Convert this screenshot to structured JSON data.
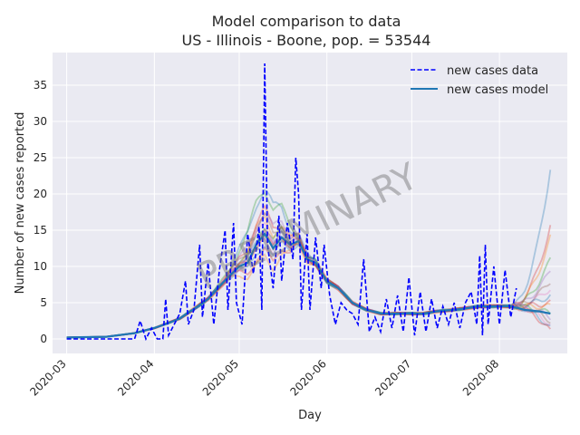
{
  "chart_data": {
    "type": "line",
    "title_line1": "Model comparison to data",
    "title_line2": "US - Illinois - Boone, pop. = 53544",
    "xlabel": "Day",
    "ylabel": "Number of new cases reported",
    "xlim": [
      "2020-02-25",
      "2020-08-25"
    ],
    "ylim": [
      -2,
      39.5
    ],
    "x_ticks": [
      "2020-03-01",
      "2020-04-01",
      "2020-05-01",
      "2020-06-01",
      "2020-07-01",
      "2020-08-01"
    ],
    "x_tick_labels": [
      "2020-03",
      "2020-04",
      "2020-05",
      "2020-06",
      "2020-07",
      "2020-08"
    ],
    "y_ticks": [
      0,
      5,
      10,
      15,
      20,
      25,
      30,
      35
    ],
    "y_tick_labels": [
      "0",
      "5",
      "10",
      "15",
      "20",
      "25",
      "30",
      "35"
    ],
    "grid": true,
    "legend_position": "top-right",
    "watermark": "PRELIMINARY",
    "colors": {
      "background": "#eaeaf2",
      "grid": "#ffffff",
      "data": "#0000ff",
      "model": "#1f77b4",
      "ensemble": [
        "#1f77b4",
        "#d62728",
        "#ff7f0e",
        "#2ca02c",
        "#9467bd",
        "#8c564b",
        "#e377c2"
      ]
    },
    "series": [
      {
        "name": "new cases data",
        "style": "dashed",
        "points": [
          [
            "2020-03-01",
            0
          ],
          [
            "2020-03-05",
            0
          ],
          [
            "2020-03-10",
            0
          ],
          [
            "2020-03-15",
            0
          ],
          [
            "2020-03-20",
            0
          ],
          [
            "2020-03-25",
            0
          ],
          [
            "2020-03-27",
            2.5
          ],
          [
            "2020-03-29",
            0
          ],
          [
            "2020-03-31",
            1.5
          ],
          [
            "2020-04-02",
            0
          ],
          [
            "2020-04-04",
            0
          ],
          [
            "2020-04-05",
            5.5
          ],
          [
            "2020-04-06",
            0.5
          ],
          [
            "2020-04-08",
            2
          ],
          [
            "2020-04-10",
            3.5
          ],
          [
            "2020-04-12",
            8
          ],
          [
            "2020-04-13",
            2
          ],
          [
            "2020-04-15",
            4
          ],
          [
            "2020-04-17",
            13
          ],
          [
            "2020-04-18",
            3
          ],
          [
            "2020-04-20",
            10.5
          ],
          [
            "2020-04-22",
            2
          ],
          [
            "2020-04-24",
            9.5
          ],
          [
            "2020-04-26",
            15
          ],
          [
            "2020-04-27",
            4
          ],
          [
            "2020-04-29",
            16
          ],
          [
            "2020-04-30",
            5
          ],
          [
            "2020-05-02",
            2
          ],
          [
            "2020-05-04",
            14.5
          ],
          [
            "2020-05-06",
            9
          ],
          [
            "2020-05-08",
            15.5
          ],
          [
            "2020-05-09",
            4
          ],
          [
            "2020-05-10",
            38
          ],
          [
            "2020-05-11",
            13
          ],
          [
            "2020-05-13",
            7
          ],
          [
            "2020-05-15",
            17
          ],
          [
            "2020-05-16",
            8
          ],
          [
            "2020-05-18",
            16
          ],
          [
            "2020-05-20",
            11
          ],
          [
            "2020-05-21",
            25
          ],
          [
            "2020-05-22",
            20
          ],
          [
            "2020-05-23",
            4
          ],
          [
            "2020-05-25",
            14.5
          ],
          [
            "2020-05-26",
            4
          ],
          [
            "2020-05-28",
            14
          ],
          [
            "2020-05-30",
            7
          ],
          [
            "2020-05-31",
            13
          ],
          [
            "2020-06-02",
            6
          ],
          [
            "2020-06-04",
            2
          ],
          [
            "2020-06-06",
            5
          ],
          [
            "2020-06-08",
            4
          ],
          [
            "2020-06-10",
            3.5
          ],
          [
            "2020-06-12",
            2
          ],
          [
            "2020-06-14",
            11
          ],
          [
            "2020-06-16",
            1
          ],
          [
            "2020-06-18",
            3
          ],
          [
            "2020-06-20",
            1
          ],
          [
            "2020-06-22",
            5.5
          ],
          [
            "2020-06-24",
            1.5
          ],
          [
            "2020-06-26",
            6
          ],
          [
            "2020-06-28",
            1
          ],
          [
            "2020-06-30",
            8.5
          ],
          [
            "2020-07-02",
            0.5
          ],
          [
            "2020-07-04",
            6.5
          ],
          [
            "2020-07-06",
            1
          ],
          [
            "2020-07-08",
            5.5
          ],
          [
            "2020-07-10",
            1.5
          ],
          [
            "2020-07-12",
            4.5
          ],
          [
            "2020-07-14",
            2
          ],
          [
            "2020-07-16",
            5
          ],
          [
            "2020-07-18",
            1.5
          ],
          [
            "2020-07-20",
            5
          ],
          [
            "2020-07-22",
            6.5
          ],
          [
            "2020-07-24",
            2
          ],
          [
            "2020-07-25",
            11.5
          ],
          [
            "2020-07-26",
            0.5
          ],
          [
            "2020-07-27",
            13
          ],
          [
            "2020-07-28",
            2
          ],
          [
            "2020-07-30",
            10
          ],
          [
            "2020-08-01",
            2
          ],
          [
            "2020-08-03",
            9.5
          ],
          [
            "2020-08-05",
            3
          ],
          [
            "2020-08-07",
            7
          ]
        ]
      },
      {
        "name": "new cases model",
        "style": "solid",
        "points": [
          [
            "2020-03-01",
            0.2
          ],
          [
            "2020-03-15",
            0.3
          ],
          [
            "2020-03-25",
            0.8
          ],
          [
            "2020-04-01",
            1.5
          ],
          [
            "2020-04-10",
            2.8
          ],
          [
            "2020-04-20",
            5.5
          ],
          [
            "2020-04-27",
            8.5
          ],
          [
            "2020-05-01",
            10
          ],
          [
            "2020-05-04",
            10.5
          ],
          [
            "2020-05-07",
            13
          ],
          [
            "2020-05-10",
            14.5
          ],
          [
            "2020-05-13",
            12.5
          ],
          [
            "2020-05-16",
            14
          ],
          [
            "2020-05-19",
            13
          ],
          [
            "2020-05-22",
            13.5
          ],
          [
            "2020-05-25",
            11
          ],
          [
            "2020-05-28",
            10.5
          ],
          [
            "2020-06-01",
            8
          ],
          [
            "2020-06-05",
            7
          ],
          [
            "2020-06-10",
            5
          ],
          [
            "2020-06-15",
            4
          ],
          [
            "2020-06-20",
            3.5
          ],
          [
            "2020-06-25",
            3.5
          ],
          [
            "2020-06-30",
            3.5
          ],
          [
            "2020-07-05",
            3.5
          ],
          [
            "2020-07-10",
            3.8
          ],
          [
            "2020-07-15",
            4
          ],
          [
            "2020-07-20",
            4.2
          ],
          [
            "2020-07-25",
            4.5
          ],
          [
            "2020-07-30",
            4.5
          ],
          [
            "2020-08-05",
            4.5
          ],
          [
            "2020-08-10",
            4
          ],
          [
            "2020-08-15",
            3.8
          ],
          [
            "2020-08-19",
            3.5
          ]
        ]
      }
    ],
    "ensemble_late_values": [
      23.5,
      15.5,
      14,
      11,
      9.5,
      8,
      7,
      6,
      5,
      4.5,
      3.5,
      3,
      2.5,
      2,
      1.5,
      1
    ],
    "ensemble_peak_values": [
      21.5,
      18,
      17,
      16,
      15,
      14.5,
      14,
      13,
      12,
      11
    ]
  }
}
